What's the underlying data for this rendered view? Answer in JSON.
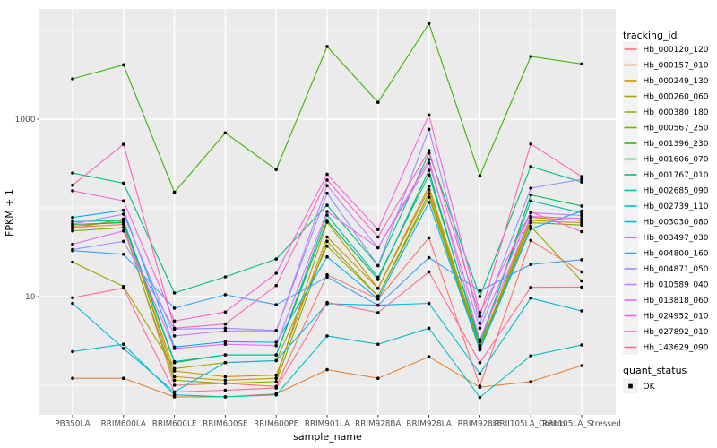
{
  "figure": {
    "kind": "ggplot-line-chart",
    "panel_bg": "#EBEBEB",
    "grid_color": "#FFFFFF",
    "axis_text_color": "#4D4D4D",
    "axis_title_color": "#000000",
    "legend_key_bg": "#F2F2F2",
    "point_color": "#000000"
  },
  "chart_data": {
    "type": "line",
    "title": "",
    "xlabel": "sample_name",
    "ylabel": "FPKM + 1",
    "y_scale": "log10",
    "ylim_log": [
      0.55,
      20000
    ],
    "y_major_ticks": [
      {
        "label": "1000",
        "value": 1000
      },
      {
        "label": "10",
        "value": 10
      }
    ],
    "y_minor_values": [
      10000,
      100,
      1
    ],
    "grid": true,
    "legend_position": "right",
    "legend_title": "tracking_id",
    "legend2_title": "quant_status",
    "legend2_items": [
      {
        "label": "OK",
        "marker": "black-square"
      }
    ],
    "categories": [
      "PB350LA",
      "RRIM600LA",
      "RRIM600LE",
      "RRIM600SE",
      "RRIM600PE",
      "RRIM901LA",
      "RRIM928BA",
      "RRIM928LA",
      "RRIM928LE",
      "RRII105LA_Control",
      "RRII105LA_Stressed"
    ],
    "series": [
      {
        "name": "Hb_000120_120",
        "color": "#F8766D",
        "values": [
          60,
          65,
          1.0,
          1.05,
          0.97,
          17.6,
          9.4,
          46,
          0.98,
          43,
          19
        ]
      },
      {
        "name": "Hb_000157_010",
        "color": "#EA8331",
        "values": [
          1.2,
          1.2,
          0.74,
          0.74,
          0.8,
          1.5,
          1.2,
          2.1,
          0.95,
          1.1,
          1.67
        ]
      },
      {
        "name": "Hb_000249_130",
        "color": "#D89000",
        "values": [
          62,
          70,
          1.45,
          1.25,
          1.3,
          47,
          12.4,
          160,
          2.65,
          72,
          68
        ]
      },
      {
        "name": "Hb_000260_060",
        "color": "#C09B00",
        "values": [
          58,
          75,
          1.25,
          1.14,
          1.2,
          69,
          12.4,
          175,
          2.75,
          78,
          72
        ]
      },
      {
        "name": "Hb_000380_180",
        "color": "#A3A500",
        "values": [
          24.5,
          13,
          1.54,
          1.8,
          1.9,
          37,
          10.1,
          132,
          2.55,
          62,
          15
        ]
      },
      {
        "name": "Hb_000567_250",
        "color": "#7CAE00",
        "values": [
          55,
          60,
          1.14,
          1.05,
          1.1,
          42,
          10.1,
          145,
          2.6,
          68,
          64
        ]
      },
      {
        "name": "Hb_001396_230",
        "color": "#39B600",
        "values": [
          2850,
          4100,
          150,
          700,
          270,
          6600,
          1550,
          12000,
          230,
          5100,
          4200
        ]
      },
      {
        "name": "Hb_001606_070",
        "color": "#00BB4E",
        "values": [
          65,
          68,
          1.8,
          2.2,
          2.2,
          72,
          15.6,
          265,
          2.8,
          140,
          105
        ]
      },
      {
        "name": "Hb_001767_010",
        "color": "#00BF7D",
        "values": [
          247,
          190,
          11,
          16.7,
          26.5,
          107,
          22.3,
          415,
          10,
          293,
          196
        ]
      },
      {
        "name": "Hb_002685_090",
        "color": "#00C1A3",
        "values": [
          70,
          72,
          1.85,
          2.2,
          2.2,
          83,
          16.5,
          235,
          3.1,
          120,
          88
        ]
      },
      {
        "name": "Hb_002739_110",
        "color": "#00BFC4",
        "values": [
          2.4,
          2.9,
          0.78,
          0.74,
          0.78,
          3.6,
          2.9,
          4.4,
          0.73,
          2.15,
          2.85
        ]
      },
      {
        "name": "Hb_003030_080",
        "color": "#00BAE0",
        "values": [
          8.4,
          2.6,
          0.84,
          1.8,
          1.9,
          8.3,
          8.0,
          8.4,
          1.35,
          9.6,
          6.9
        ]
      },
      {
        "name": "Hb_003497_030",
        "color": "#00B0F6",
        "values": [
          78,
          94,
          2.7,
          3.1,
          3.05,
          28,
          9.4,
          115,
          2.5,
          58,
          92
        ]
      },
      {
        "name": "Hb_004800_160",
        "color": "#35A2FF",
        "values": [
          33,
          30,
          7.4,
          10.5,
          8.1,
          16.6,
          8.0,
          27.5,
          11.6,
          23,
          26
        ]
      },
      {
        "name": "Hb_004871_050",
        "color": "#9590FF",
        "values": [
          34,
          42,
          4.3,
          4.4,
          4.15,
          146,
          22.3,
          768,
          5.0,
          167,
          210
        ]
      },
      {
        "name": "Hb_010589_040",
        "color": "#C77CFF",
        "values": [
          66,
          85,
          3.6,
          4.1,
          4.1,
          178,
          35.5,
          320,
          4.4,
          88,
          82
        ]
      },
      {
        "name": "Hb_013818_060",
        "color": "#E76BF3",
        "values": [
          39,
          55,
          2.6,
          2.9,
          2.8,
          91,
          35.5,
          350,
          3.25,
          80,
          76
        ]
      },
      {
        "name": "Hb_024952_010",
        "color": "#FA62DB",
        "values": [
          156,
          120,
          5.3,
          6.7,
          18.3,
          240,
          57,
          1115,
          6.6,
          90,
          54
        ]
      },
      {
        "name": "Hb_027892_010",
        "color": "#FF62BC",
        "values": [
          180,
          520,
          4.4,
          4.9,
          13.3,
          206,
          47,
          442,
          6.0,
          525,
          225
        ]
      },
      {
        "name": "Hb_143629_090",
        "color": "#FF6A98",
        "values": [
          9.7,
          12.5,
          0.84,
          0.88,
          0.93,
          8.6,
          6.6,
          19,
          1.8,
          12.7,
          12.8
        ]
      }
    ]
  }
}
